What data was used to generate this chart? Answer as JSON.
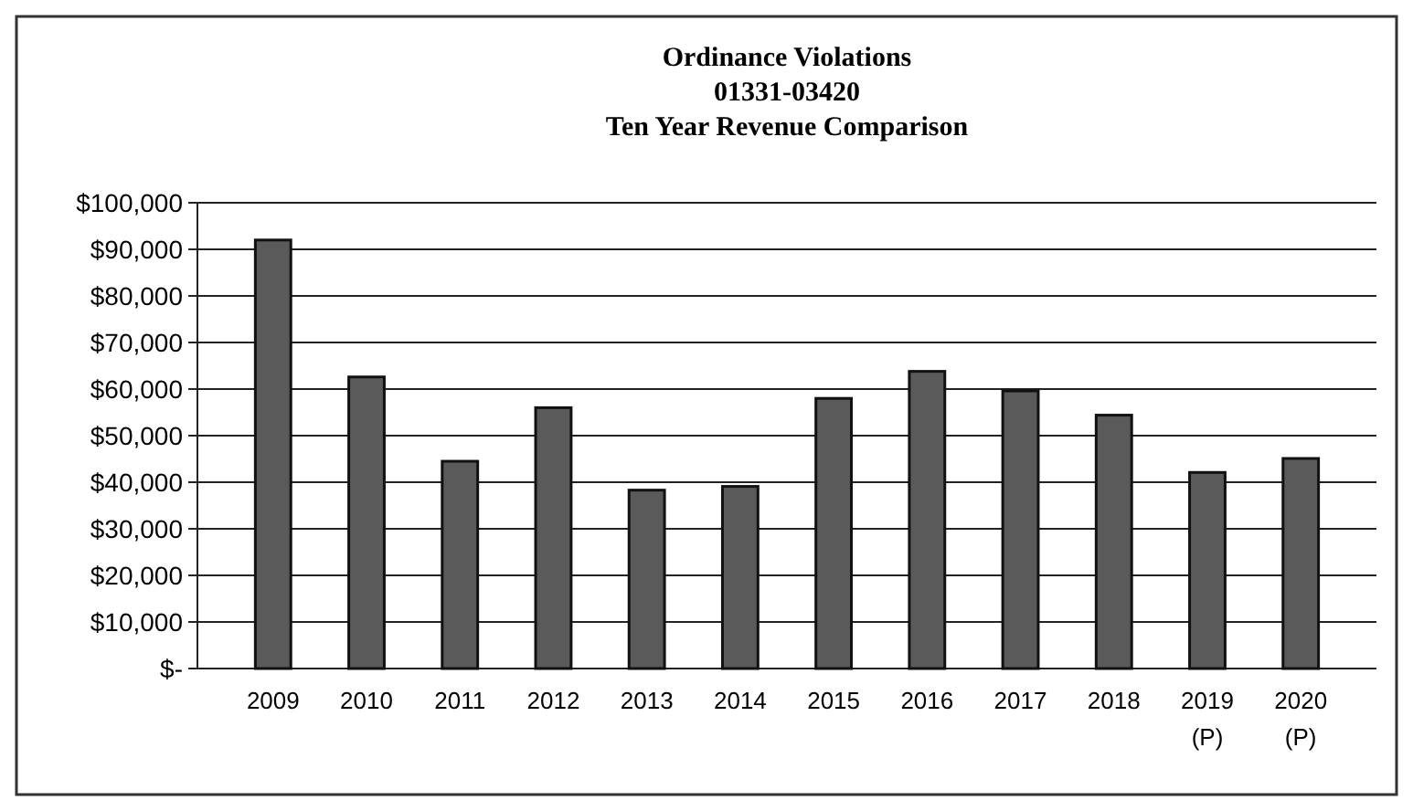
{
  "chart_data": {
    "type": "bar",
    "title": "Ordinance Violations\n01331-03420\nTen Year Revenue Comparison",
    "categories": [
      "2009",
      "2010",
      "2011",
      "2012",
      "2013",
      "2014",
      "2015",
      "2016",
      "2017",
      "2018",
      "2019\n(P)",
      "2020\n(P)"
    ],
    "values": [
      92000,
      62600,
      44500,
      56000,
      38300,
      39100,
      58000,
      63800,
      59600,
      54400,
      42100,
      45100
    ],
    "color": "#5a5a5a",
    "ylim": [
      0,
      100000
    ],
    "yticks": [
      {
        "value": 0,
        "label": "$-"
      },
      {
        "value": 10000,
        "label": "$10,000"
      },
      {
        "value": 20000,
        "label": "$20,000"
      },
      {
        "value": 30000,
        "label": "$30,000"
      },
      {
        "value": 40000,
        "label": "$40,000"
      },
      {
        "value": 50000,
        "label": "$50,000"
      },
      {
        "value": 60000,
        "label": "$60,000"
      },
      {
        "value": 70000,
        "label": "$70,000"
      },
      {
        "value": 80000,
        "label": "$80,000"
      },
      {
        "value": 90000,
        "label": "$90,000"
      },
      {
        "value": 100000,
        "label": "$100,000"
      }
    ],
    "grid": "y"
  }
}
